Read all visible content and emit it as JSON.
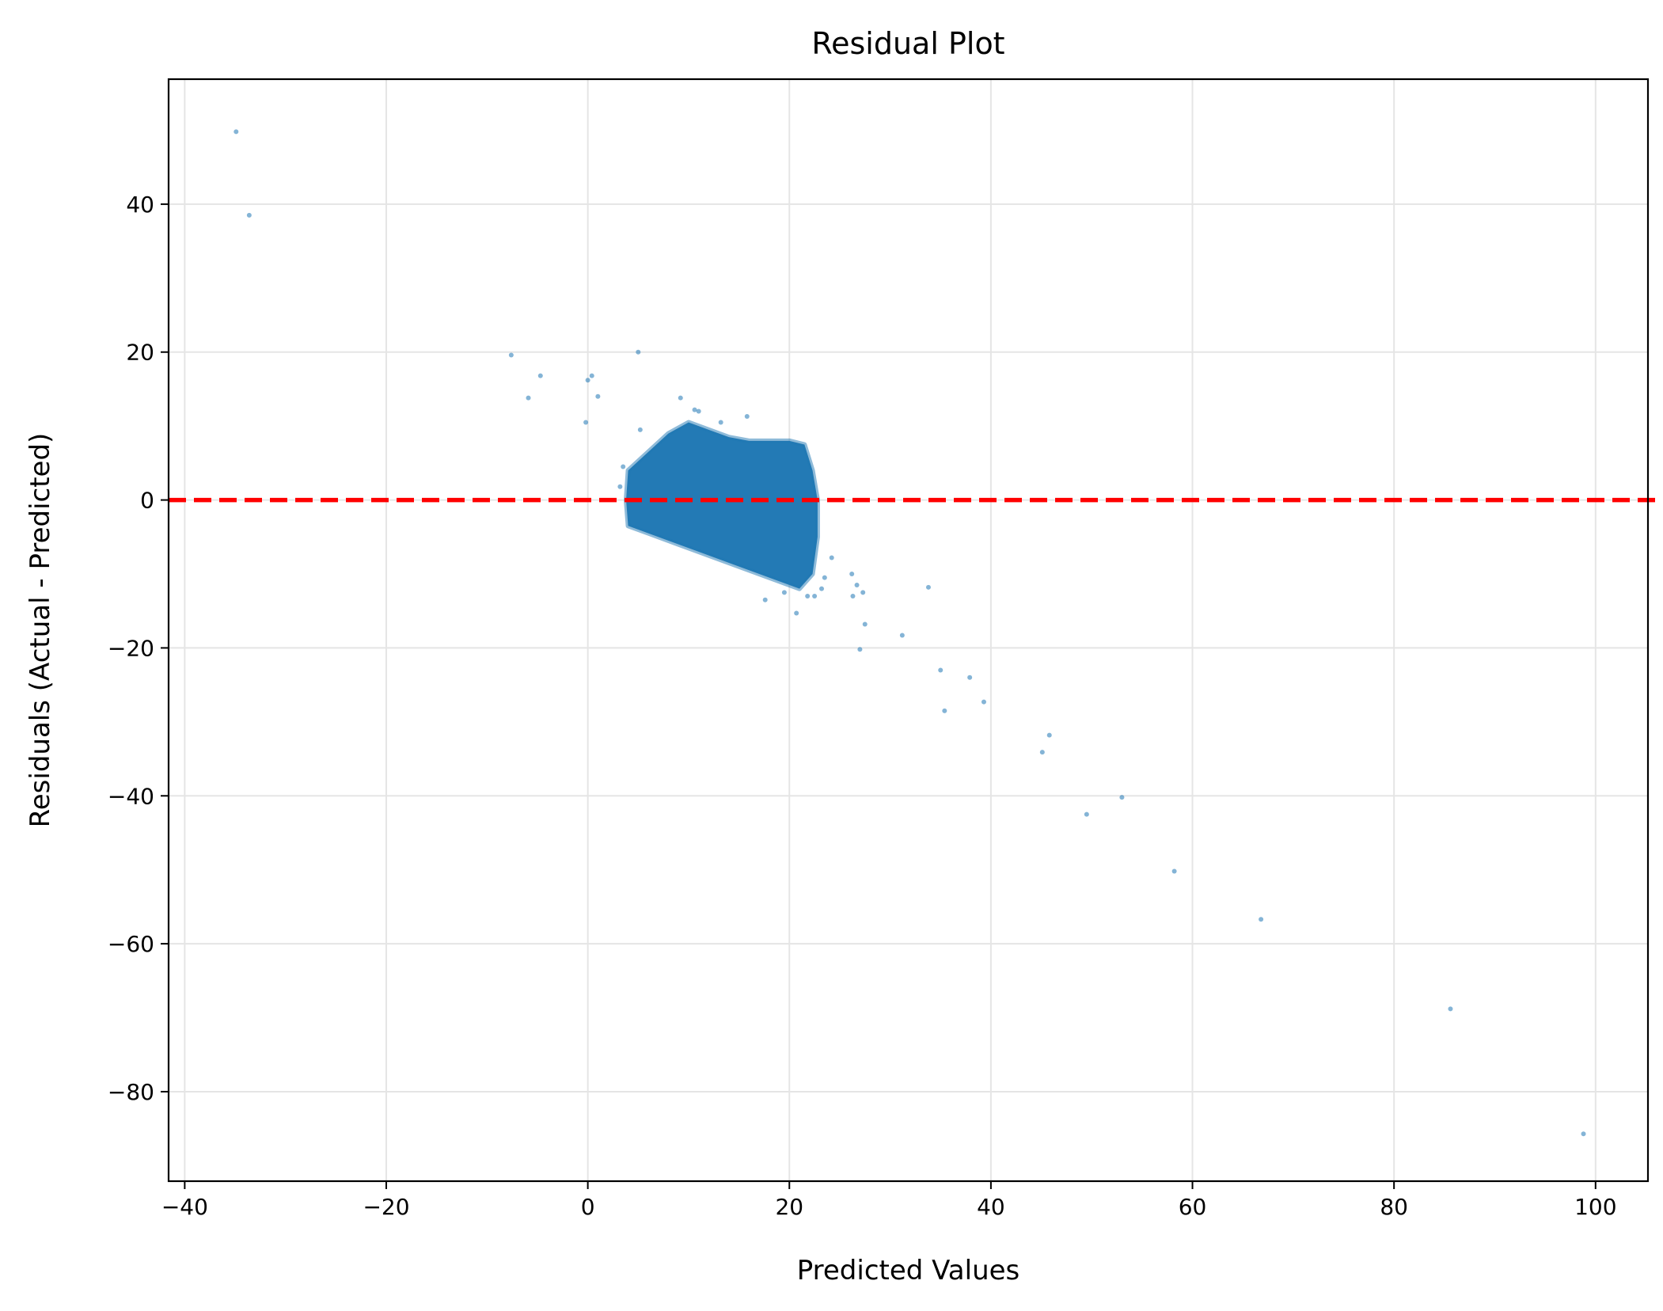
{
  "chart_data": {
    "type": "scatter",
    "title": "Residual Plot",
    "xlabel": "Predicted Values",
    "ylabel": "Residuals (Actual - Predicted)",
    "xlim": [
      -41.6,
      105.2
    ],
    "ylim": [
      -92.1,
      56.9
    ],
    "x_ticks": [
      -40,
      -20,
      0,
      20,
      40,
      60,
      80,
      100
    ],
    "x_tick_labels": [
      "−40",
      "−20",
      "0",
      "20",
      "40",
      "60",
      "80",
      "100"
    ],
    "y_ticks": [
      -80,
      -60,
      -40,
      -20,
      0,
      20,
      40
    ],
    "y_tick_labels": [
      "−80",
      "−60",
      "−40",
      "−20",
      "0",
      "20",
      "40"
    ],
    "grid": true,
    "reference_line": {
      "y": 0,
      "style": "dashed",
      "color": "#ff0000"
    },
    "colors": {
      "points": "#1f77b4",
      "reference_line": "#ff0000",
      "grid": "#e5e5e5"
    },
    "point_opacity": 0.45,
    "dense_cluster": {
      "description_shape_polygon": [
        [
          4.0,
          4.0
        ],
        [
          6.0,
          6.5
        ],
        [
          8.0,
          9.0
        ],
        [
          10.0,
          10.5
        ],
        [
          12.0,
          9.5
        ],
        [
          14.0,
          8.5
        ],
        [
          16.0,
          8.0
        ],
        [
          18.0,
          8.0
        ],
        [
          20.0,
          8.0
        ],
        [
          21.5,
          7.5
        ],
        [
          22.3,
          4.0
        ],
        [
          22.8,
          0.0
        ],
        [
          22.8,
          -5.0
        ],
        [
          22.3,
          -10.0
        ],
        [
          21.0,
          -12.0
        ],
        [
          18.0,
          -10.5
        ],
        [
          15.0,
          -9.0
        ],
        [
          12.0,
          -7.5
        ],
        [
          9.0,
          -6.0
        ],
        [
          6.0,
          -4.5
        ],
        [
          4.0,
          -3.5
        ],
        [
          3.8,
          0.0
        ]
      ],
      "approx_point_count": 20000
    },
    "points": [
      {
        "x": -34.9,
        "y": 49.8
      },
      {
        "x": -33.6,
        "y": 38.5
      },
      {
        "x": -7.6,
        "y": 19.6
      },
      {
        "x": -4.7,
        "y": 16.8
      },
      {
        "x": -5.9,
        "y": 13.8
      },
      {
        "x": -0.2,
        "y": 10.5
      },
      {
        "x": 0.0,
        "y": 16.2
      },
      {
        "x": 0.4,
        "y": 16.8
      },
      {
        "x": 1.0,
        "y": 14.0
      },
      {
        "x": 5.0,
        "y": 20.0
      },
      {
        "x": 3.5,
        "y": 4.5
      },
      {
        "x": 3.2,
        "y": 1.8
      },
      {
        "x": 5.2,
        "y": 9.5
      },
      {
        "x": 9.2,
        "y": 13.8
      },
      {
        "x": 10.6,
        "y": 12.2
      },
      {
        "x": 11.0,
        "y": 12.0
      },
      {
        "x": 15.8,
        "y": 11.3
      },
      {
        "x": 13.2,
        "y": 10.5
      },
      {
        "x": 17.6,
        "y": -13.5
      },
      {
        "x": 20.7,
        "y": -15.3
      },
      {
        "x": 19.5,
        "y": -12.5
      },
      {
        "x": 21.8,
        "y": -13.0
      },
      {
        "x": 22.5,
        "y": -13.0
      },
      {
        "x": 23.2,
        "y": -12.0
      },
      {
        "x": 24.2,
        "y": -7.8
      },
      {
        "x": 23.5,
        "y": -10.5
      },
      {
        "x": 26.2,
        "y": -10.0
      },
      {
        "x": 26.7,
        "y": -11.5
      },
      {
        "x": 27.3,
        "y": -12.5
      },
      {
        "x": 26.3,
        "y": -13.0
      },
      {
        "x": 27.5,
        "y": -16.8
      },
      {
        "x": 27.0,
        "y": -20.2
      },
      {
        "x": 31.2,
        "y": -18.3
      },
      {
        "x": 33.8,
        "y": -11.8
      },
      {
        "x": 35.0,
        "y": -23.0
      },
      {
        "x": 35.4,
        "y": -28.5
      },
      {
        "x": 37.9,
        "y": -24.0
      },
      {
        "x": 39.3,
        "y": -27.3
      },
      {
        "x": 45.1,
        "y": -34.1
      },
      {
        "x": 45.8,
        "y": -31.8
      },
      {
        "x": 49.5,
        "y": -42.5
      },
      {
        "x": 53.0,
        "y": -40.2
      },
      {
        "x": 58.2,
        "y": -50.2
      },
      {
        "x": 66.8,
        "y": -56.7
      },
      {
        "x": 85.6,
        "y": -68.8
      },
      {
        "x": 98.8,
        "y": -85.7
      }
    ]
  }
}
